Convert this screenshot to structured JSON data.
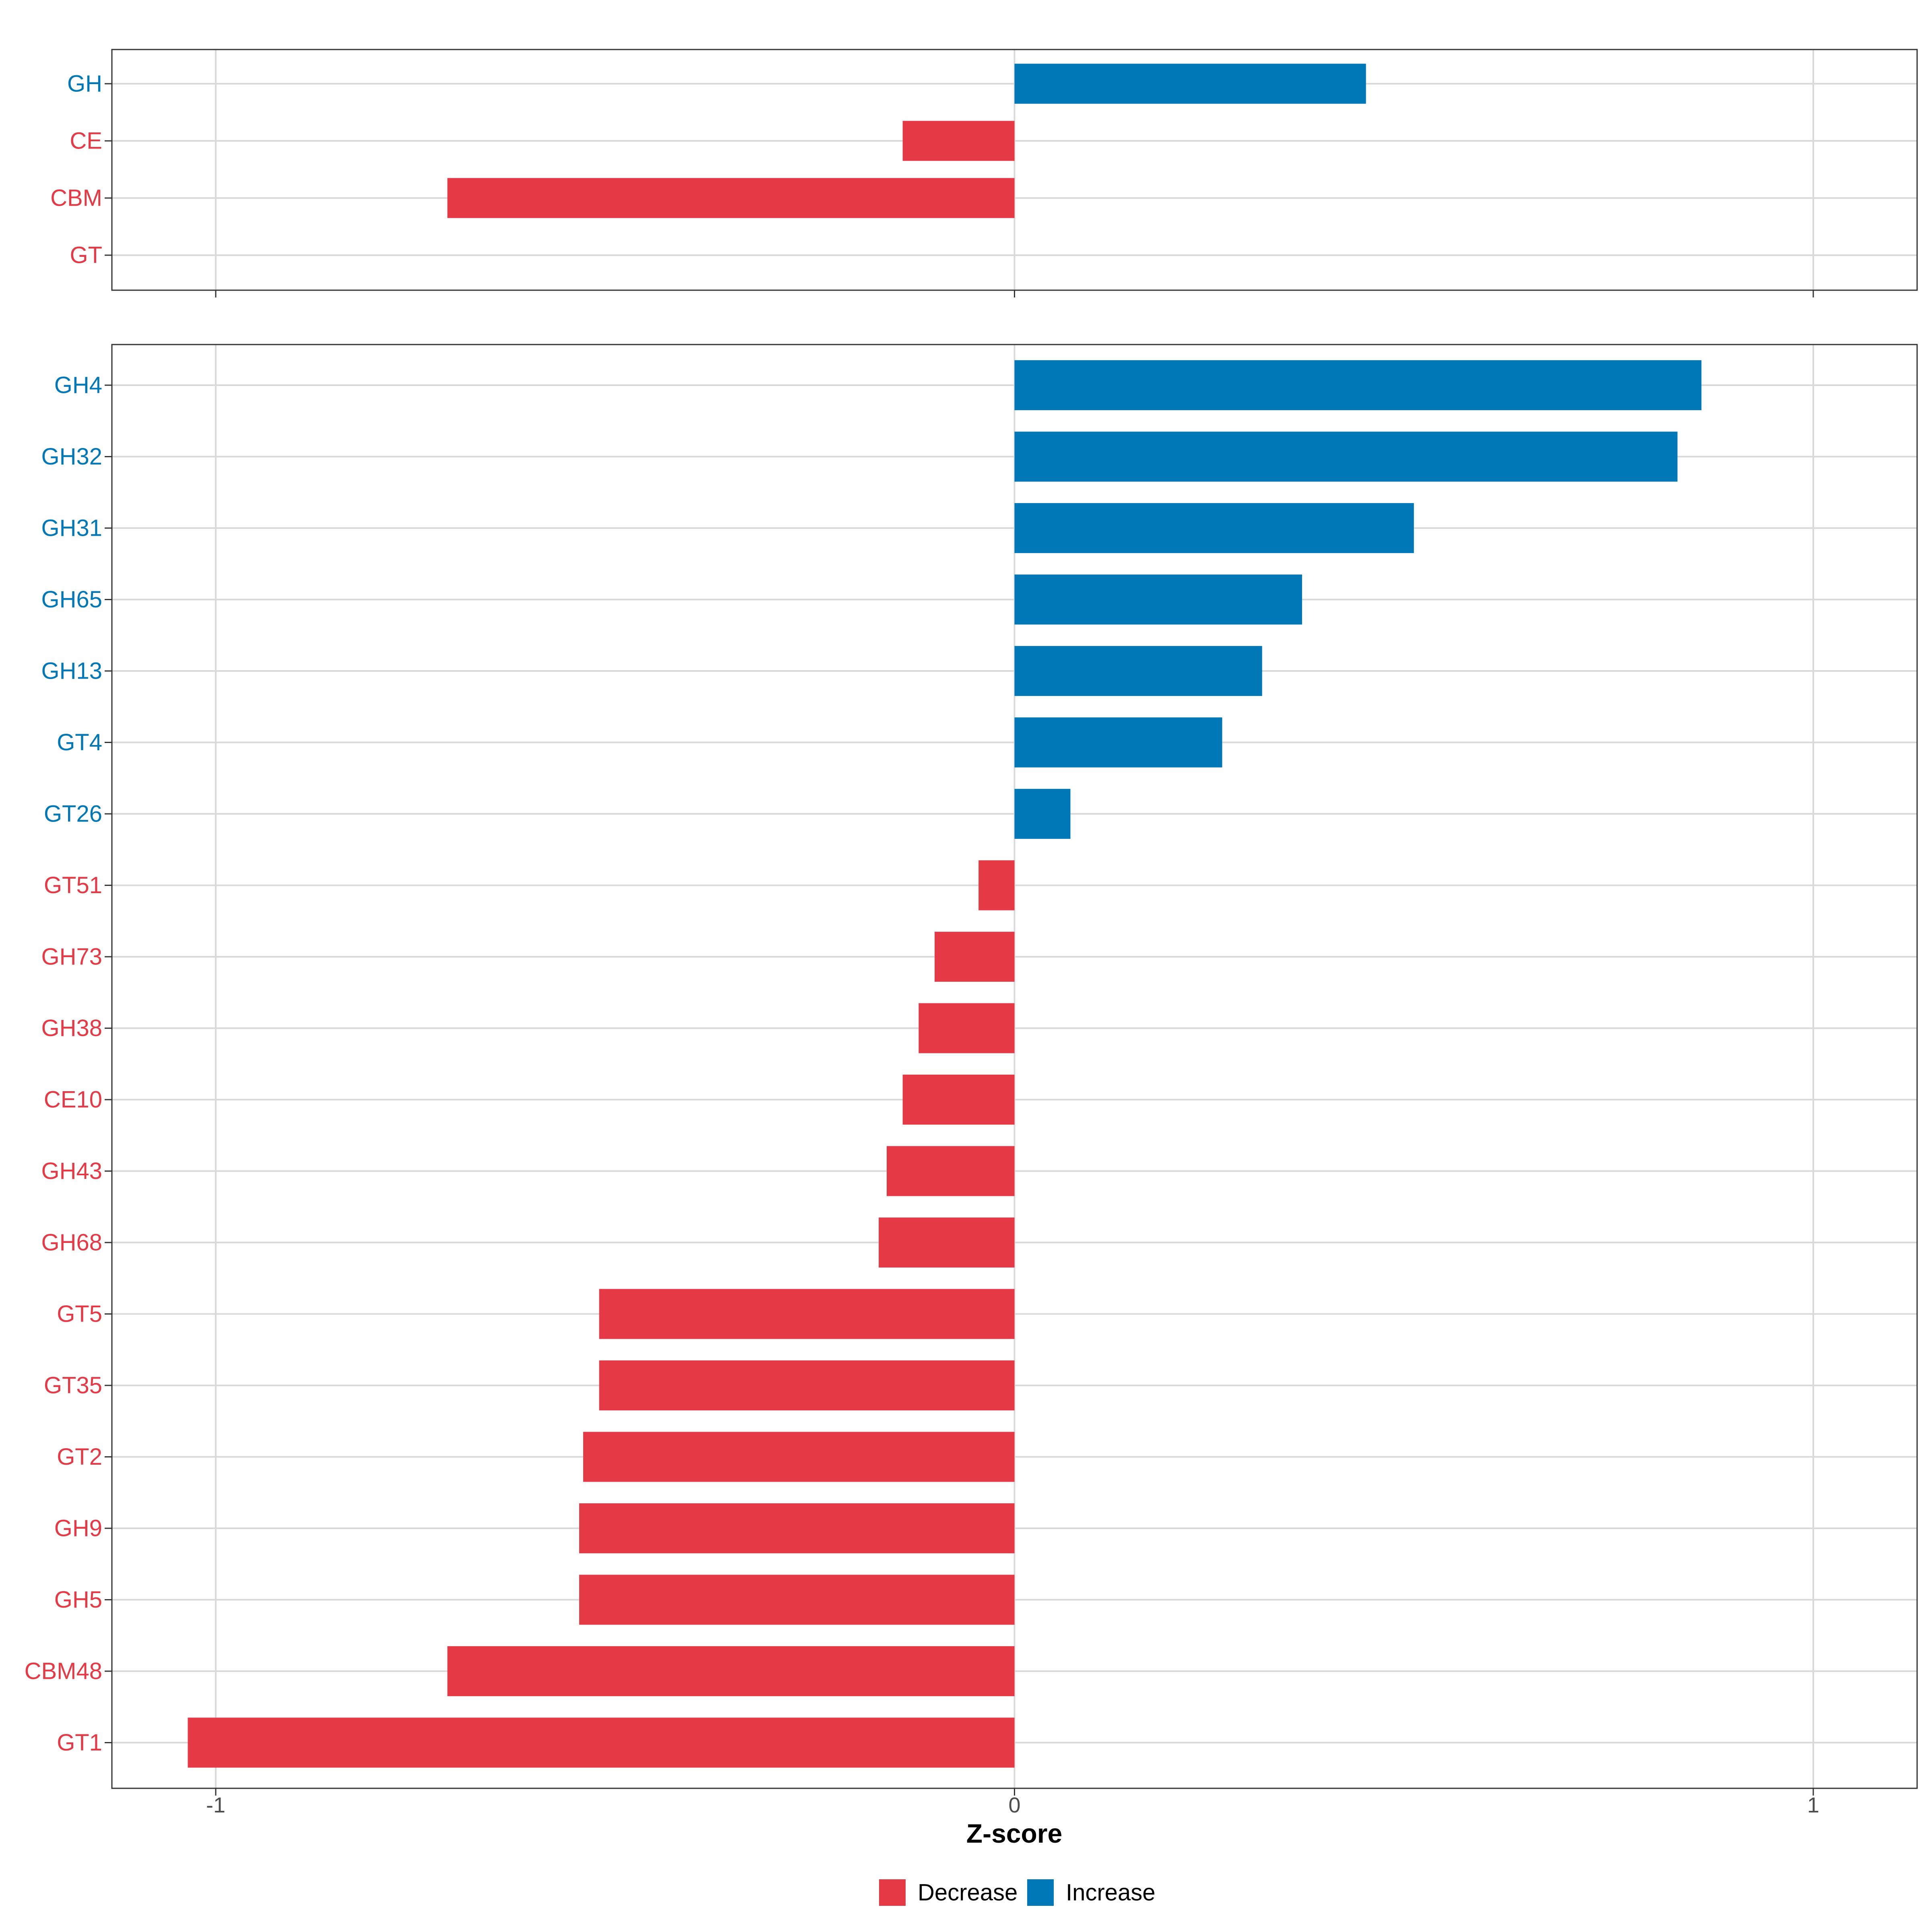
{
  "chart_data": {
    "type": "bar",
    "orientation": "horizontal",
    "xlabel": "Z-score",
    "xlim": [
      -1.13,
      1.13
    ],
    "xticks": [
      -1,
      0,
      1
    ],
    "xtick_labels": [
      "-1",
      "0",
      "1"
    ],
    "grid": true,
    "legend": {
      "placement": "bottom",
      "entries": [
        {
          "label": "Decrease",
          "color": "#E63946"
        },
        {
          "label": "Increase",
          "color": "#0077B6"
        }
      ]
    },
    "colors": {
      "Decrease": "#E63946",
      "Increase": "#0077B6"
    },
    "panels": [
      {
        "name": "top",
        "categories": [
          "GH",
          "CE",
          "CBM",
          "GT"
        ],
        "values": [
          0.44,
          -0.14,
          -0.71,
          0.0
        ],
        "direction": [
          "Increase",
          "Decrease",
          "Decrease",
          "Decrease"
        ]
      },
      {
        "name": "bottom",
        "categories": [
          "GH4",
          "GH32",
          "GH31",
          "GH65",
          "GH13",
          "GT4",
          "GT26",
          "GT51",
          "GH73",
          "GH38",
          "CE10",
          "GH43",
          "GH68",
          "GT5",
          "GT35",
          "GT2",
          "GH9",
          "GH5",
          "CBM48",
          "GT1"
        ],
        "values": [
          0.86,
          0.83,
          0.5,
          0.36,
          0.31,
          0.26,
          0.07,
          -0.045,
          -0.1,
          -0.12,
          -0.14,
          -0.16,
          -0.17,
          -0.52,
          -0.52,
          -0.54,
          -0.545,
          -0.545,
          -0.71,
          -1.035
        ],
        "direction": [
          "Increase",
          "Increase",
          "Increase",
          "Increase",
          "Increase",
          "Increase",
          "Increase",
          "Decrease",
          "Decrease",
          "Decrease",
          "Decrease",
          "Decrease",
          "Decrease",
          "Decrease",
          "Decrease",
          "Decrease",
          "Decrease",
          "Decrease",
          "Decrease",
          "Decrease"
        ]
      }
    ]
  }
}
